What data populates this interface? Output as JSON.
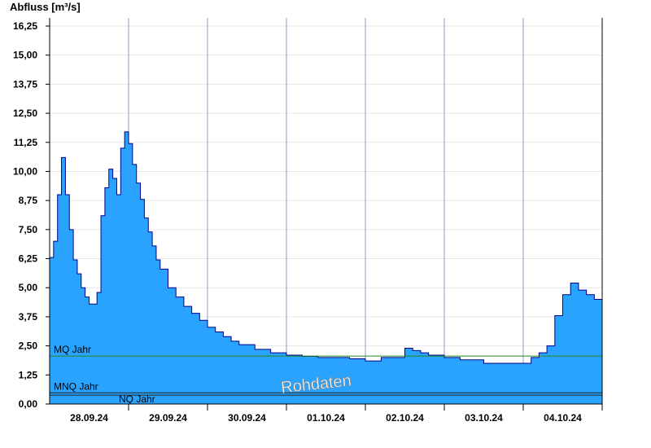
{
  "chart_data": {
    "type": "area",
    "ylabel": "Abfluss [m³/s]",
    "ylim": [
      0,
      16.6
    ],
    "yticks": [
      "0,00",
      "1,25",
      "2,50",
      "3,75",
      "5,00",
      "6,25",
      "7,50",
      "8,75",
      "10,00",
      "11,25",
      "12,50",
      "13,75",
      "15,00",
      "16,25"
    ],
    "xticks": [
      "28.09.24",
      "29.09.24",
      "30.09.24",
      "01.10.24",
      "02.10.24",
      "03.10.24",
      "04.10.24"
    ],
    "x_unit": "days from start of 28.09.24",
    "xlim": [
      0,
      7
    ],
    "grid": true,
    "fill_color": "#2aa3ff",
    "line_color": "#00008b",
    "series": [
      {
        "x": [
          0.0,
          0.05,
          0.1,
          0.15,
          0.2,
          0.25,
          0.3,
          0.35,
          0.4,
          0.45,
          0.5,
          0.55,
          0.6,
          0.65,
          0.7,
          0.75,
          0.8,
          0.85,
          0.9,
          0.95,
          1.0,
          1.05,
          1.1,
          1.15,
          1.2,
          1.25,
          1.3,
          1.35,
          1.4,
          1.5,
          1.6,
          1.7,
          1.8,
          1.9,
          2.0,
          2.1,
          2.2,
          2.3,
          2.4,
          2.6,
          2.8,
          3.0,
          3.2,
          3.4,
          3.6,
          3.8,
          4.0,
          4.2,
          4.4,
          4.5,
          4.6,
          4.7,
          4.8,
          5.0,
          5.2,
          5.5,
          5.8,
          6.0,
          6.1,
          6.2,
          6.3,
          6.4,
          6.5,
          6.6,
          6.7,
          6.8,
          6.9,
          7.0
        ],
        "values": [
          6.3,
          7.0,
          9.0,
          10.6,
          9.0,
          7.5,
          6.2,
          5.6,
          5.0,
          4.6,
          4.3,
          4.3,
          4.8,
          8.1,
          9.3,
          10.1,
          9.7,
          9.0,
          11.0,
          11.7,
          11.2,
          10.3,
          9.5,
          8.8,
          8.0,
          7.4,
          6.8,
          6.2,
          5.8,
          5.0,
          4.6,
          4.2,
          3.9,
          3.6,
          3.3,
          3.1,
          2.9,
          2.7,
          2.55,
          2.35,
          2.2,
          2.1,
          2.05,
          2.0,
          2.0,
          1.95,
          1.85,
          2.0,
          2.0,
          2.4,
          2.3,
          2.2,
          2.1,
          2.0,
          1.9,
          1.75,
          1.75,
          1.75,
          2.0,
          2.2,
          2.5,
          3.8,
          4.7,
          5.2,
          4.9,
          4.7,
          4.5,
          5.0
        ]
      }
    ],
    "reference_lines": [
      {
        "label": "MQ Jahr",
        "value": 2.06,
        "color": "#228b22"
      },
      {
        "label": "MNQ Jahr",
        "value": 0.48,
        "color": "#222222"
      },
      {
        "label": "NQ Jahr",
        "value": 0.38,
        "color": "#222222"
      }
    ],
    "watermark": "Rohdaten"
  }
}
